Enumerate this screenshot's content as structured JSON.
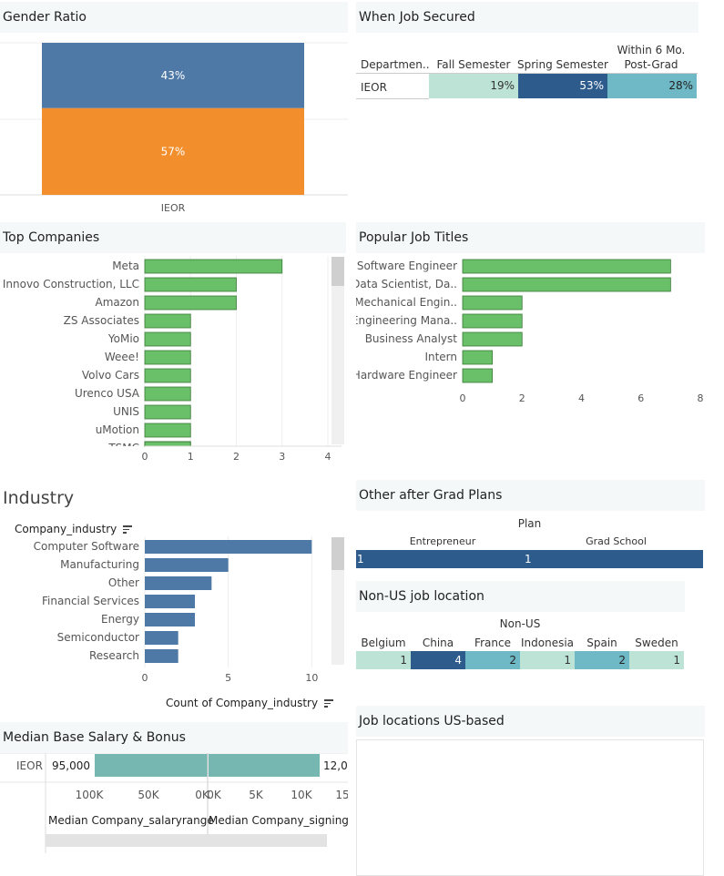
{
  "gender": {
    "title": "Gender Ratio",
    "category": "IEOR",
    "segments": [
      {
        "label": "43%",
        "value": 43,
        "color": "#4e79a7"
      },
      {
        "label": "57%",
        "value": 57,
        "color": "#f28e2b"
      }
    ]
  },
  "job_secured": {
    "title": "When Job Secured",
    "col_dept": "Departmen..",
    "columns": [
      {
        "label": "Fall Semester",
        "value": "19%",
        "color": "#bde3d6",
        "text": "#333"
      },
      {
        "label": "Spring Semester",
        "value": "53%",
        "color": "#2d5b8c",
        "text": "#fff"
      },
      {
        "label_line1": "Within 6 Mo.",
        "label_line2": "Post-Grad",
        "value": "28%",
        "color": "#6fb9c6",
        "text": "#222"
      }
    ],
    "row": "IEOR"
  },
  "top_companies": {
    "title": "Top Companies",
    "bar_color": "#6abf69",
    "ticks": [
      "0",
      "1",
      "2",
      "3",
      "4"
    ],
    "max": 4,
    "items": [
      {
        "label": "Meta",
        "value": 3
      },
      {
        "label": "Innovo Construction, LLC",
        "value": 2
      },
      {
        "label": "Amazon",
        "value": 2
      },
      {
        "label": "ZS Associates",
        "value": 1
      },
      {
        "label": "YoMio",
        "value": 1
      },
      {
        "label": "Weee!",
        "value": 1
      },
      {
        "label": "Volvo Cars",
        "value": 1
      },
      {
        "label": "Urenco USA",
        "value": 1
      },
      {
        "label": "UNIS",
        "value": 1
      },
      {
        "label": "uMotion",
        "value": 1
      },
      {
        "label": "TSMC",
        "value": 1
      }
    ]
  },
  "job_titles": {
    "title": "Popular Job Titles",
    "bar_color": "#6abf69",
    "ticks": [
      "0",
      "2",
      "4",
      "6",
      "8"
    ],
    "max": 8,
    "items": [
      {
        "label": "Software Engineer",
        "value": 7
      },
      {
        "label": "Data Scientist, Da..",
        "value": 7
      },
      {
        "label": "Mechanical Engin..",
        "value": 2
      },
      {
        "label": "Engineering Mana..",
        "value": 2
      },
      {
        "label": "Business Analyst",
        "value": 2
      },
      {
        "label": "Intern",
        "value": 1
      },
      {
        "label": "Hardware Engineer",
        "value": 1
      }
    ]
  },
  "industry": {
    "title": "Industry",
    "field_label": "Company_industry",
    "axis_title": "Count of Company_industry",
    "bar_color": "#4e79a7",
    "ticks": [
      "0",
      "5",
      "10"
    ],
    "max": 12,
    "items": [
      {
        "label": "Computer Software",
        "value": 10
      },
      {
        "label": "Manufacturing",
        "value": 5
      },
      {
        "label": "Other",
        "value": 4
      },
      {
        "label": "Financial Services",
        "value": 3
      },
      {
        "label": "Energy",
        "value": 3
      },
      {
        "label": "Semiconductor",
        "value": 2
      },
      {
        "label": "Research",
        "value": 2
      }
    ]
  },
  "other_plans": {
    "title": "Other after Grad Plans",
    "header": "Plan",
    "columns": [
      {
        "label": "Entrepreneur",
        "value": "1"
      },
      {
        "label": "Grad School",
        "value": "1"
      }
    ],
    "color": "#2d5b8c"
  },
  "non_us": {
    "title": "Non-US job location",
    "header": "Non-US",
    "columns": [
      {
        "label": "Belgium",
        "value": "1",
        "color": "#bde3d6",
        "text": "#333"
      },
      {
        "label": "China",
        "value": "4",
        "color": "#2d5b8c",
        "text": "#fff"
      },
      {
        "label": "France",
        "value": "2",
        "color": "#6fb9c6",
        "text": "#222"
      },
      {
        "label": "Indonesia",
        "value": "1",
        "color": "#bde3d6",
        "text": "#333"
      },
      {
        "label": "Spain",
        "value": "2",
        "color": "#6fb9c6",
        "text": "#222"
      },
      {
        "label": "Sweden",
        "value": "1",
        "color": "#bde3d6",
        "text": "#333"
      }
    ]
  },
  "salary": {
    "title": "Median Base Salary & Bonus",
    "row": "IEOR",
    "salary_value": "95,000",
    "salary_numeric": 95000,
    "bonus_value": "12,0",
    "bar_color": "#76b7b2",
    "salary_ticks": [
      "100K",
      "50K",
      "0K"
    ],
    "bonus_ticks": [
      "0K",
      "5K",
      "10K",
      "15"
    ],
    "axis1": "Median Company_salaryrange",
    "axis2": "Median Company_signingb"
  },
  "us_locations": {
    "title": "Job locations US-based"
  }
}
